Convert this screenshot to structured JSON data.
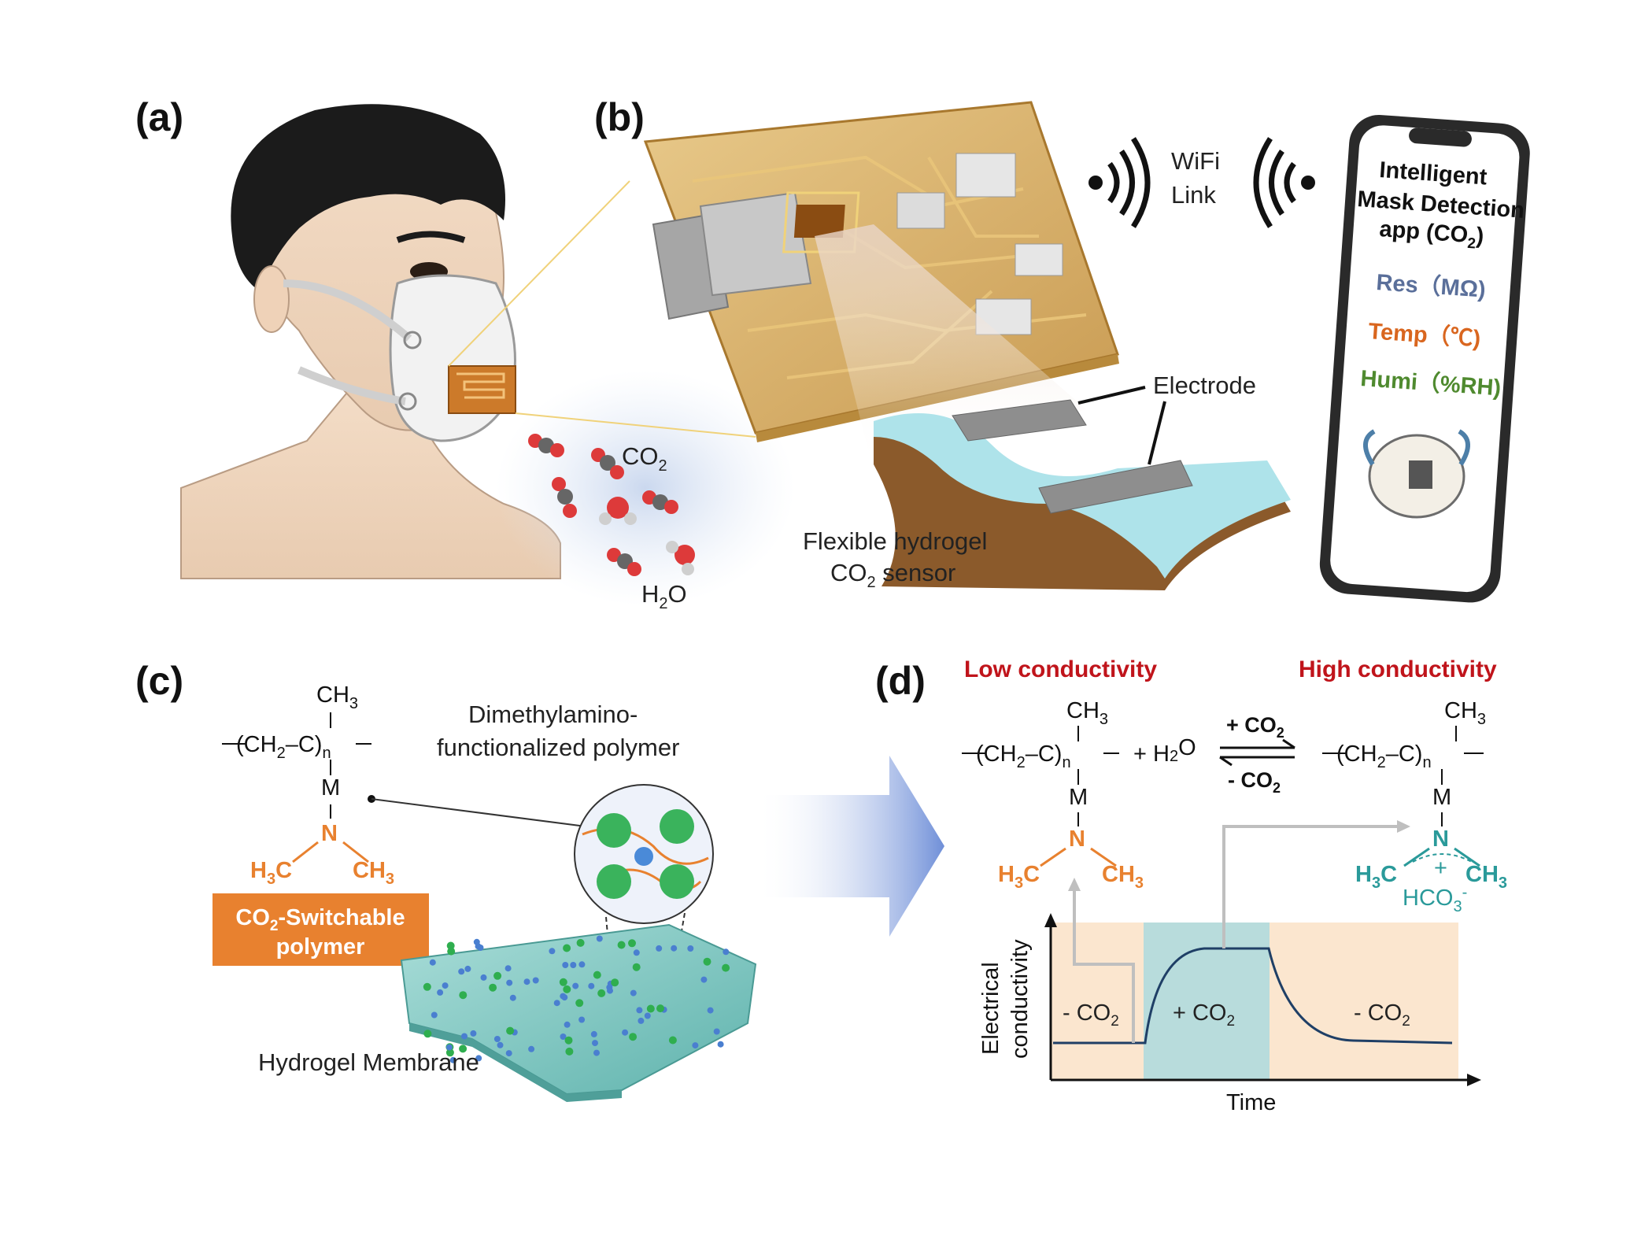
{
  "panels": {
    "a": {
      "label": "(a)",
      "co2_label": "CO",
      "co2_sub": "2",
      "h2o_h": "H",
      "h2o_sub": "2",
      "h2o_o": "O"
    },
    "b": {
      "label": "(b)",
      "wifi_line1": "WiFi",
      "wifi_line2": "Link",
      "electrode_label": "Electrode",
      "sensor_line1": "Flexible hydrogel",
      "sensor_line2_prefix": "CO",
      "sensor_line2_sub": "2",
      "sensor_line2_suffix": " sensor",
      "app": {
        "line1": "Intelligent",
        "line2": "Mask Detection",
        "line3_prefix": "app (CO",
        "line3_sub": "2",
        "line3_suffix": ")",
        "res": "Res（MΩ)",
        "temp": "Temp（℃)",
        "humi": "Humi（%RH)"
      },
      "colors": {
        "res": "#5a6f9a",
        "temp": "#d9661f",
        "humi": "#4f8a2f"
      }
    },
    "c": {
      "label": "(c)",
      "polymer_desc_line1": "Dimethylamino-",
      "polymer_desc_line2": "functionalized polymer",
      "badge_line1_prefix": "CO",
      "badge_line1_sub": "2",
      "badge_line1_suffix": "-Switchable",
      "badge_line2": "polymer",
      "membrane_label": "Hydrogel Membrane",
      "badge_color": "#e8812f"
    },
    "d": {
      "label": "(d)",
      "low_conductivity": "Low conductivity",
      "high_conductivity": "High conductivity",
      "plus_h2o": "+ H",
      "forward": "+ CO",
      "reverse": "- CO",
      "hco3": "HCO",
      "hco3_sub": "3",
      "hco3_sup": "-",
      "plus_charge": "+",
      "chart": {
        "ylabel_line1": "Electrical",
        "ylabel_line2": "conductivity",
        "xlabel": "Time",
        "region1": "- CO",
        "region2": "+ CO",
        "region3": "- CO",
        "region_sub": "2"
      }
    },
    "chem": {
      "ch3": "CH",
      "ch3_sub": "3",
      "ch2": "CH",
      "ch2_sub": "2",
      "c": "C",
      "n_sub": "n",
      "m": "M",
      "n": "N",
      "h3c_h": "H",
      "h3c_sub": "3",
      "h3c_c": "C"
    }
  }
}
